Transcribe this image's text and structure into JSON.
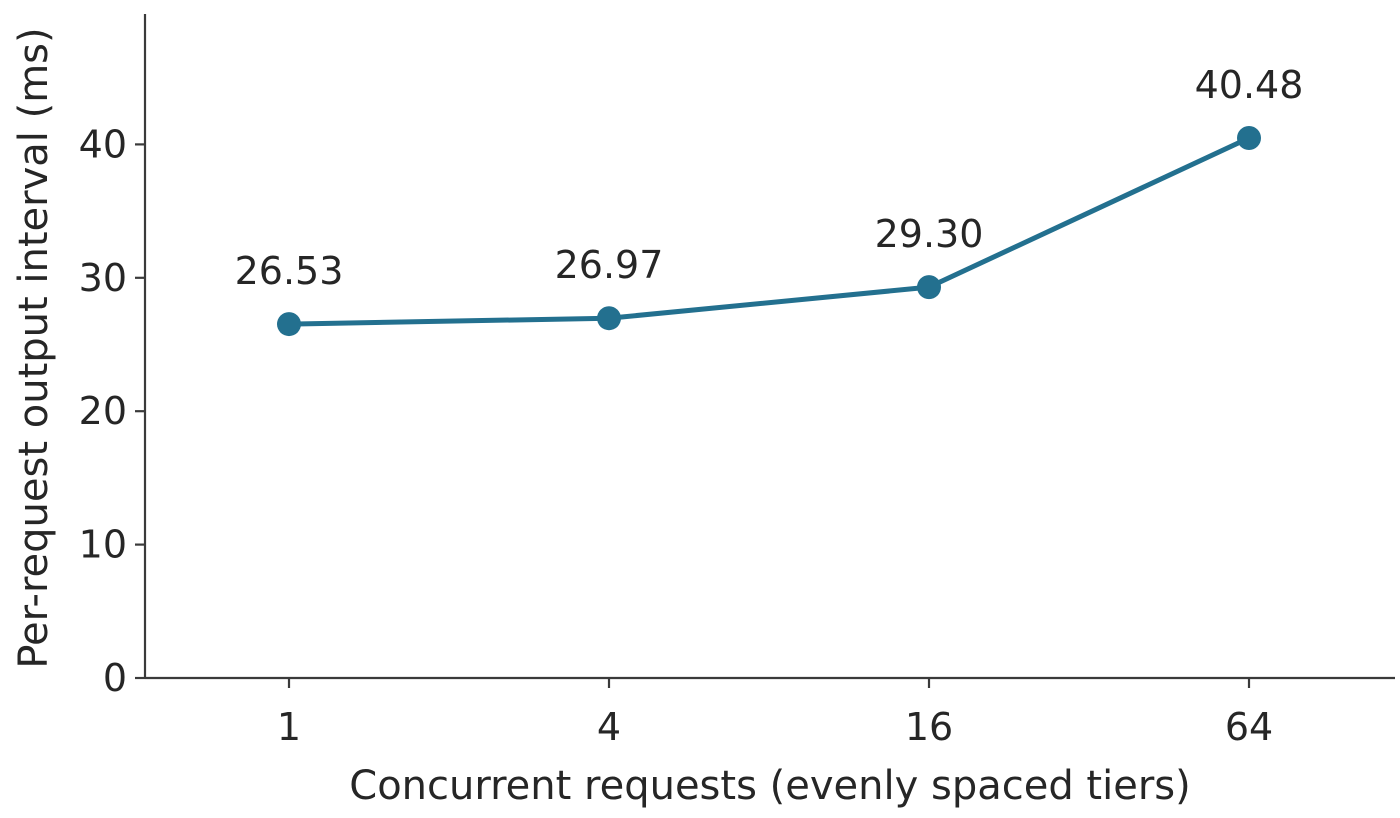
{
  "chart_data": {
    "type": "line",
    "title": "",
    "xlabel": "Concurrent requests (evenly spaced tiers)",
    "ylabel": "Per-request output interval (ms)",
    "categories": [
      "1",
      "4",
      "16",
      "64"
    ],
    "series": [
      {
        "values": [
          26.53,
          26.97,
          29.3,
          40.48
        ],
        "data_labels": [
          "26.53",
          "26.97",
          "29.30",
          "40.48"
        ],
        "color": "#23708f"
      }
    ],
    "yticks": [
      "0",
      "10",
      "20",
      "30",
      "40"
    ],
    "ylim": [
      0,
      50
    ],
    "grid": false,
    "legend": "none"
  }
}
